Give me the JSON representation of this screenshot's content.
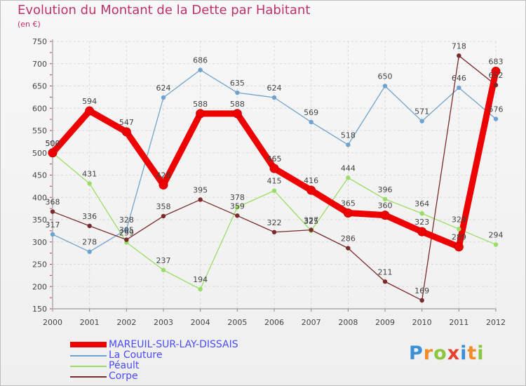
{
  "header": {
    "title": "Evolution du Montant de la Dette par Habitant",
    "subtitle": "(en €)"
  },
  "brand": {
    "letters": [
      "P",
      "r",
      "o",
      "x",
      "i",
      "t",
      "i"
    ],
    "colors": [
      "#3b8fd6",
      "#f28c28",
      "#8cc63f",
      "#e8402f",
      "#3b8fd6",
      "#f28c28",
      "#8cc63f"
    ]
  },
  "chart_data": {
    "type": "line",
    "title": "Evolution du Montant de la Dette par Habitant",
    "ylabel": "(en €)",
    "xlabel": "",
    "x": [
      "2000",
      "2001",
      "2002",
      "2003",
      "2004",
      "2005",
      "2006",
      "2007",
      "2008",
      "2009",
      "2010",
      "2011",
      "2012"
    ],
    "ylim": [
      150,
      750
    ],
    "yticks": [
      150,
      200,
      250,
      300,
      350,
      400,
      450,
      500,
      550,
      600,
      650,
      700,
      750
    ],
    "grid": true,
    "legend_position": "bottom-left",
    "series": [
      {
        "name": "MAREUIL-SUR-LAY-DISSAIS",
        "color": "#ee0000",
        "values": [
          500,
          594,
          547,
          428,
          588,
          588,
          465,
          416,
          365,
          360,
          323,
          289,
          683
        ]
      },
      {
        "name": "La Couture",
        "color": "#6fa3cf",
        "values": [
          317,
          278,
          328,
          624,
          686,
          635,
          624,
          569,
          518,
          650,
          571,
          646,
          576
        ]
      },
      {
        "name": "Péault",
        "color": "#99dd66",
        "values": [
          500,
          431,
          299,
          237,
          194,
          378,
          415,
          325,
          444,
          396,
          364,
          329,
          294
        ]
      },
      {
        "name": "Corpe",
        "color": "#7a2a2a",
        "values": [
          368,
          336,
          305,
          358,
          395,
          359,
          322,
          327,
          286,
          211,
          169,
          718,
          652
        ]
      }
    ]
  }
}
